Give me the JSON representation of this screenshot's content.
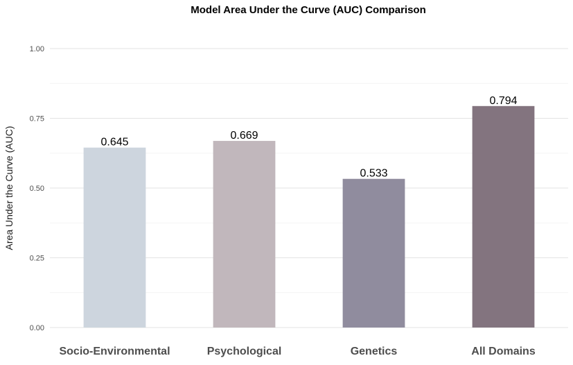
{
  "chart_data": {
    "type": "bar",
    "title": "Model Area Under the Curve (AUC) Comparison",
    "xlabel": "",
    "ylabel": "Area Under the Curve (AUC)",
    "categories": [
      "Socio-Environmental",
      "Psychological",
      "Genetics",
      "All Domains"
    ],
    "values": [
      0.645,
      0.669,
      0.533,
      0.794
    ],
    "data_labels": [
      "0.645",
      "0.669",
      "0.533",
      "0.794"
    ],
    "colors": [
      "#cdd5de",
      "#c1b7bc",
      "#908c9e",
      "#83747f"
    ],
    "ylim": [
      0,
      1
    ],
    "yticks": [
      0,
      0.25,
      0.5,
      0.75,
      1
    ],
    "ytick_labels": [
      "0.00",
      "0.25",
      "0.50",
      "0.75",
      "1.00"
    ],
    "grid": true,
    "legend": false
  }
}
